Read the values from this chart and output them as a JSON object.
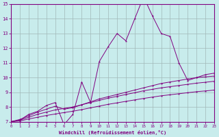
{
  "xlabel": "Windchill (Refroidissement éolien,°C)",
  "bg_color": "#c8ecec",
  "line_color": "#800080",
  "grid_color": "#a0b8b8",
  "xlim": [
    0,
    23
  ],
  "ylim": [
    7,
    15
  ],
  "xticks": [
    0,
    1,
    2,
    3,
    4,
    5,
    6,
    7,
    8,
    9,
    10,
    11,
    12,
    13,
    14,
    15,
    16,
    17,
    18,
    19,
    20,
    21,
    22,
    23
  ],
  "yticks": [
    7,
    8,
    9,
    10,
    11,
    12,
    13,
    14,
    15
  ],
  "line1_x": [
    0,
    1,
    2,
    3,
    4,
    5,
    6,
    7,
    8,
    9,
    10,
    11,
    12,
    13,
    14,
    15,
    16,
    17,
    18,
    19,
    20,
    21,
    22,
    23
  ],
  "line1_y": [
    7.0,
    7.1,
    7.5,
    7.7,
    8.1,
    8.3,
    6.8,
    7.5,
    9.7,
    8.3,
    11.1,
    12.1,
    13.0,
    12.5,
    14.0,
    15.5,
    14.2,
    13.0,
    12.8,
    11.0,
    9.8,
    10.0,
    10.2,
    10.3
  ],
  "line2_x": [
    0,
    1,
    2,
    3,
    4,
    5,
    6,
    7,
    8,
    9,
    10,
    11,
    12,
    13,
    14,
    15,
    16,
    17,
    18,
    19,
    20,
    21,
    22,
    23
  ],
  "line2_y": [
    7.0,
    7.15,
    7.4,
    7.65,
    7.85,
    8.05,
    7.85,
    7.95,
    8.15,
    8.35,
    8.55,
    8.7,
    8.85,
    9.0,
    9.15,
    9.3,
    9.45,
    9.6,
    9.7,
    9.8,
    9.9,
    10.0,
    10.05,
    10.1
  ],
  "line3_x": [
    0,
    1,
    2,
    3,
    4,
    5,
    6,
    7,
    8,
    9,
    10,
    11,
    12,
    13,
    14,
    15,
    16,
    17,
    18,
    19,
    20,
    21,
    22,
    23
  ],
  "line3_y": [
    7.0,
    7.1,
    7.3,
    7.5,
    7.65,
    7.8,
    7.9,
    8.0,
    8.15,
    8.3,
    8.45,
    8.6,
    8.72,
    8.85,
    8.97,
    9.1,
    9.2,
    9.3,
    9.38,
    9.46,
    9.54,
    9.62,
    9.68,
    9.75
  ],
  "line4_x": [
    0,
    1,
    2,
    3,
    4,
    5,
    6,
    7,
    8,
    9,
    10,
    11,
    12,
    13,
    14,
    15,
    16,
    17,
    18,
    19,
    20,
    21,
    22,
    23
  ],
  "line4_y": [
    7.0,
    7.05,
    7.18,
    7.3,
    7.42,
    7.52,
    7.62,
    7.71,
    7.82,
    7.94,
    8.06,
    8.18,
    8.28,
    8.38,
    8.48,
    8.58,
    8.67,
    8.76,
    8.83,
    8.9,
    8.97,
    9.04,
    9.09,
    9.15
  ]
}
